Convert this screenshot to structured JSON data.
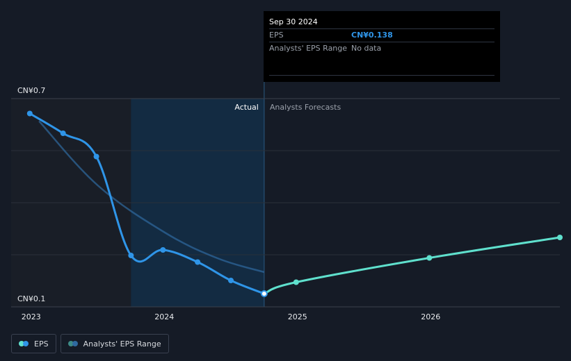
{
  "chart_data": {
    "type": "line",
    "y_axis": {
      "top_label": "CN¥0.7",
      "bottom_label": "CN¥0.1",
      "ylim": [
        0.1,
        0.7
      ]
    },
    "x_axis": {
      "ticks": [
        "2023",
        "2024",
        "2025",
        "2026"
      ],
      "tick_values": [
        2023.0,
        2024.0,
        2025.0,
        2026.0
      ],
      "xlim": [
        2022.85,
        2026.97
      ]
    },
    "regions": {
      "actual_label": "Actual",
      "forecast_label": "Analysts Forecasts",
      "divider_x": 2024.75,
      "highlight_start_x": 2023.75
    },
    "series": [
      {
        "name": "EPS",
        "color": "#2f95e8",
        "points": [
          [
            2022.99,
            0.657
          ],
          [
            2023.24,
            0.6
          ],
          [
            2023.49,
            0.533
          ],
          [
            2023.75,
            0.248
          ],
          [
            2023.99,
            0.264
          ],
          [
            2024.25,
            0.229
          ],
          [
            2024.5,
            0.176
          ],
          [
            2024.75,
            0.138
          ]
        ]
      },
      {
        "name": "EPS Forecast",
        "color": "#5fe0cd",
        "points": [
          [
            2024.75,
            0.138
          ],
          [
            2024.99,
            0.171
          ],
          [
            2025.99,
            0.241
          ],
          [
            2026.97,
            0.3
          ]
        ]
      },
      {
        "name": "Past trend",
        "color": "#2f6aa0",
        "points": [
          [
            2023.06,
            0.635
          ],
          [
            2023.5,
            0.45
          ],
          [
            2024.0,
            0.315
          ],
          [
            2024.4,
            0.24
          ],
          [
            2024.75,
            0.2
          ]
        ]
      }
    ],
    "grid": true
  },
  "tooltip": {
    "date": "Sep 30 2024",
    "rows": [
      {
        "label": "EPS",
        "value": "CN¥0.138"
      },
      {
        "label": "Analysts' EPS Range",
        "value": "No data"
      }
    ]
  },
  "legend": {
    "items": [
      {
        "label": "EPS",
        "colors": [
          "#2f95e8",
          "#5fe0cd"
        ]
      },
      {
        "label": "Analysts' EPS Range",
        "colors": [
          "#2f6aa0",
          "#3d8a86"
        ]
      }
    ]
  }
}
